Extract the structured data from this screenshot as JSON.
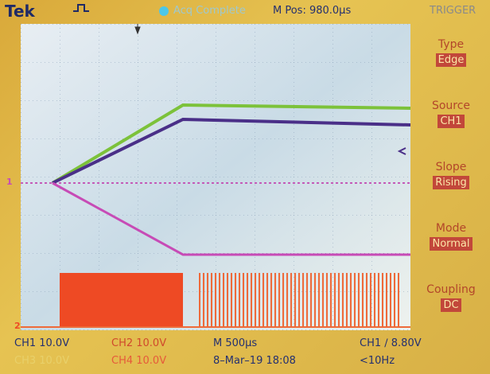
{
  "header": {
    "brand": "Tek",
    "status": "Acq Complete",
    "position": "M Pos: 980.0µs",
    "menu_title": "TRIGGER"
  },
  "menu": [
    {
      "label": "Type",
      "value": "Edge"
    },
    {
      "label": "Source",
      "value": "CH1"
    },
    {
      "label": "Slope",
      "value": "Rising"
    },
    {
      "label": "Mode",
      "value": "Normal"
    },
    {
      "label": "Coupling",
      "value": "DC"
    }
  ],
  "markers": {
    "ch1": "1",
    "ch2": "2"
  },
  "footer": {
    "row1": [
      "CH1 10.0V",
      "CH2 10.0V",
      "M 500µs",
      "CH1 ∕ 8.80V"
    ],
    "row2": [
      "CH3 10.0V",
      "CH4 10.0V",
      "8–Mar–19 18:08",
      "<10Hz"
    ]
  }
}
